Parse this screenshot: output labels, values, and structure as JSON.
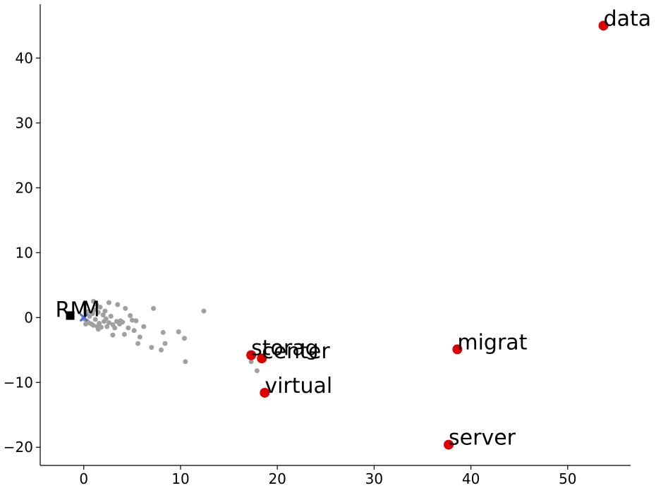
{
  "chart_data": {
    "type": "scatter",
    "title": "",
    "xlabel": "",
    "ylabel": "",
    "xlim": [
      -4.5,
      56.5
    ],
    "ylim": [
      -22.8,
      48.3
    ],
    "xticks": [
      0,
      10,
      20,
      30,
      40,
      50
    ],
    "yticks": [
      -20,
      -10,
      0,
      10,
      20,
      30,
      40
    ],
    "grid": false,
    "colors": {
      "background": "#cfcfcf",
      "highlight": "#dd0000",
      "center_marker": "#4a6fd8",
      "square_marker": "#000000"
    },
    "background_points": [
      [
        0.0,
        -0.2
      ],
      [
        0.3,
        -0.5
      ],
      [
        0.5,
        -0.8
      ],
      [
        0.6,
        0.2
      ],
      [
        0.8,
        -1.0
      ],
      [
        0.9,
        0.6
      ],
      [
        1.0,
        -1.2
      ],
      [
        1.1,
        1.2
      ],
      [
        1.2,
        -0.3
      ],
      [
        1.3,
        2.0
      ],
      [
        1.4,
        -1.4
      ],
      [
        1.5,
        0.8
      ],
      [
        1.6,
        -0.9
      ],
      [
        1.7,
        1.6
      ],
      [
        1.8,
        -1.5
      ],
      [
        2.0,
        0.4
      ],
      [
        2.1,
        -0.6
      ],
      [
        2.2,
        1.0
      ],
      [
        2.4,
        -1.4
      ],
      [
        2.6,
        -0.8
      ],
      [
        2.8,
        0.2
      ],
      [
        3.0,
        -1.1
      ],
      [
        3.2,
        -1.6
      ],
      [
        3.4,
        -0.6
      ],
      [
        3.5,
        2.0
      ],
      [
        3.7,
        -1.0
      ],
      [
        4.0,
        -0.7
      ],
      [
        4.2,
        -2.6
      ],
      [
        4.3,
        1.4
      ],
      [
        4.6,
        -1.6
      ],
      [
        4.8,
        0.3
      ],
      [
        5.0,
        -0.4
      ],
      [
        5.2,
        -2.0
      ],
      [
        5.4,
        -0.5
      ],
      [
        5.6,
        -4.0
      ],
      [
        5.8,
        -3.0
      ],
      [
        6.2,
        -1.4
      ],
      [
        7.0,
        -4.6
      ],
      [
        7.2,
        1.4
      ],
      [
        8.0,
        -5.0
      ],
      [
        8.2,
        -2.3
      ],
      [
        8.4,
        -4.0
      ],
      [
        9.8,
        -2.2
      ],
      [
        10.4,
        -3.2
      ],
      [
        10.5,
        -6.8
      ],
      [
        12.4,
        1.0
      ],
      [
        2.6,
        2.3
      ],
      [
        3.0,
        -2.7
      ],
      [
        1.0,
        2.5
      ],
      [
        0.4,
        0.9
      ],
      [
        0.2,
        -1.0
      ],
      [
        1.5,
        -1.8
      ],
      [
        2.3,
        -0.2
      ],
      [
        3.8,
        -0.5
      ],
      [
        17.3,
        -6.8
      ],
      [
        17.9,
        -8.2
      ]
    ],
    "highlighted": [
      {
        "word": "data",
        "x": 53.7,
        "y": 45.0
      },
      {
        "word": "migrat",
        "x": 38.6,
        "y": -4.9
      },
      {
        "word": "storag",
        "x": 17.3,
        "y": -5.8
      },
      {
        "word": "center",
        "x": 18.4,
        "y": -6.3
      },
      {
        "word": "virtual",
        "x": 18.7,
        "y": -11.6
      },
      {
        "word": "server",
        "x": 37.7,
        "y": -19.6
      }
    ],
    "markers": [
      {
        "label": "RM",
        "shape": "square",
        "x": -1.4,
        "y": 0.3
      },
      {
        "label": "M",
        "shape": "x",
        "x": 0.0,
        "y": 0.0
      }
    ]
  }
}
